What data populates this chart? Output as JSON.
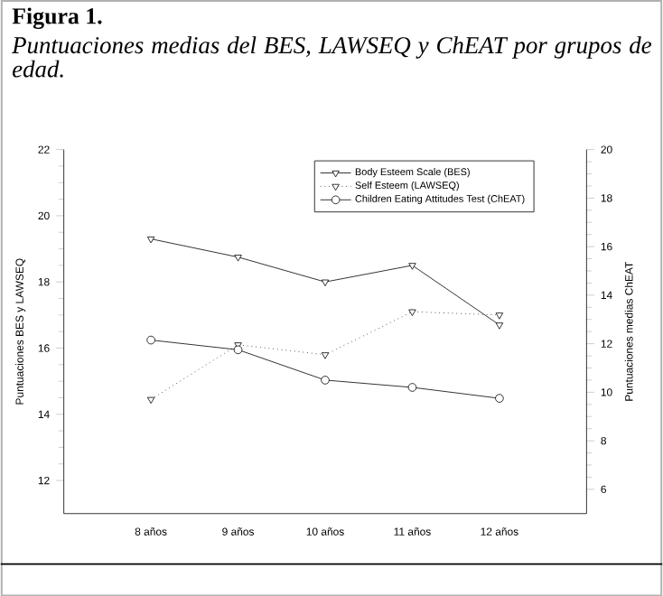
{
  "chart_data": {
    "type": "line",
    "title": "Figura 1.",
    "subtitle": "Puntuaciones medias del BES, LAWSEQ y ChEAT por grupos de edad.",
    "categories": [
      "8 años",
      "9 años",
      "10 años",
      "11 años",
      "12 años"
    ],
    "ylabel": "Puntuaciones BES y LAWSEQ",
    "y2label": "Puntuaciones medias ChEAT",
    "ylim": [
      11,
      22
    ],
    "yticks": [
      12,
      14,
      16,
      18,
      20,
      22
    ],
    "y2lim": [
      5,
      20
    ],
    "y2ticks": [
      6,
      8,
      10,
      12,
      14,
      16,
      18,
      20
    ],
    "legend": "top right",
    "grid": false,
    "series": [
      {
        "name": "Body Esteem Scale (BES)",
        "color": "#000000",
        "marker": "triangle",
        "line_style": "solid",
        "values": [
          19.3,
          18.75,
          18.0,
          18.5,
          16.7
        ]
      },
      {
        "name": "Self Esteem  (LAWSEQ)",
        "color": "#000000",
        "marker": "triangle",
        "line_style": "dotted",
        "values": [
          14.45,
          16.1,
          15.8,
          17.1,
          17.0
        ]
      },
      {
        "name": "Children Eating Attitudes Test (ChEAT)",
        "color": "#000000",
        "marker": "circle",
        "line_style": "solid",
        "axis": "y2",
        "values": [
          12.15,
          11.75,
          10.5,
          10.2,
          9.75
        ]
      }
    ]
  }
}
